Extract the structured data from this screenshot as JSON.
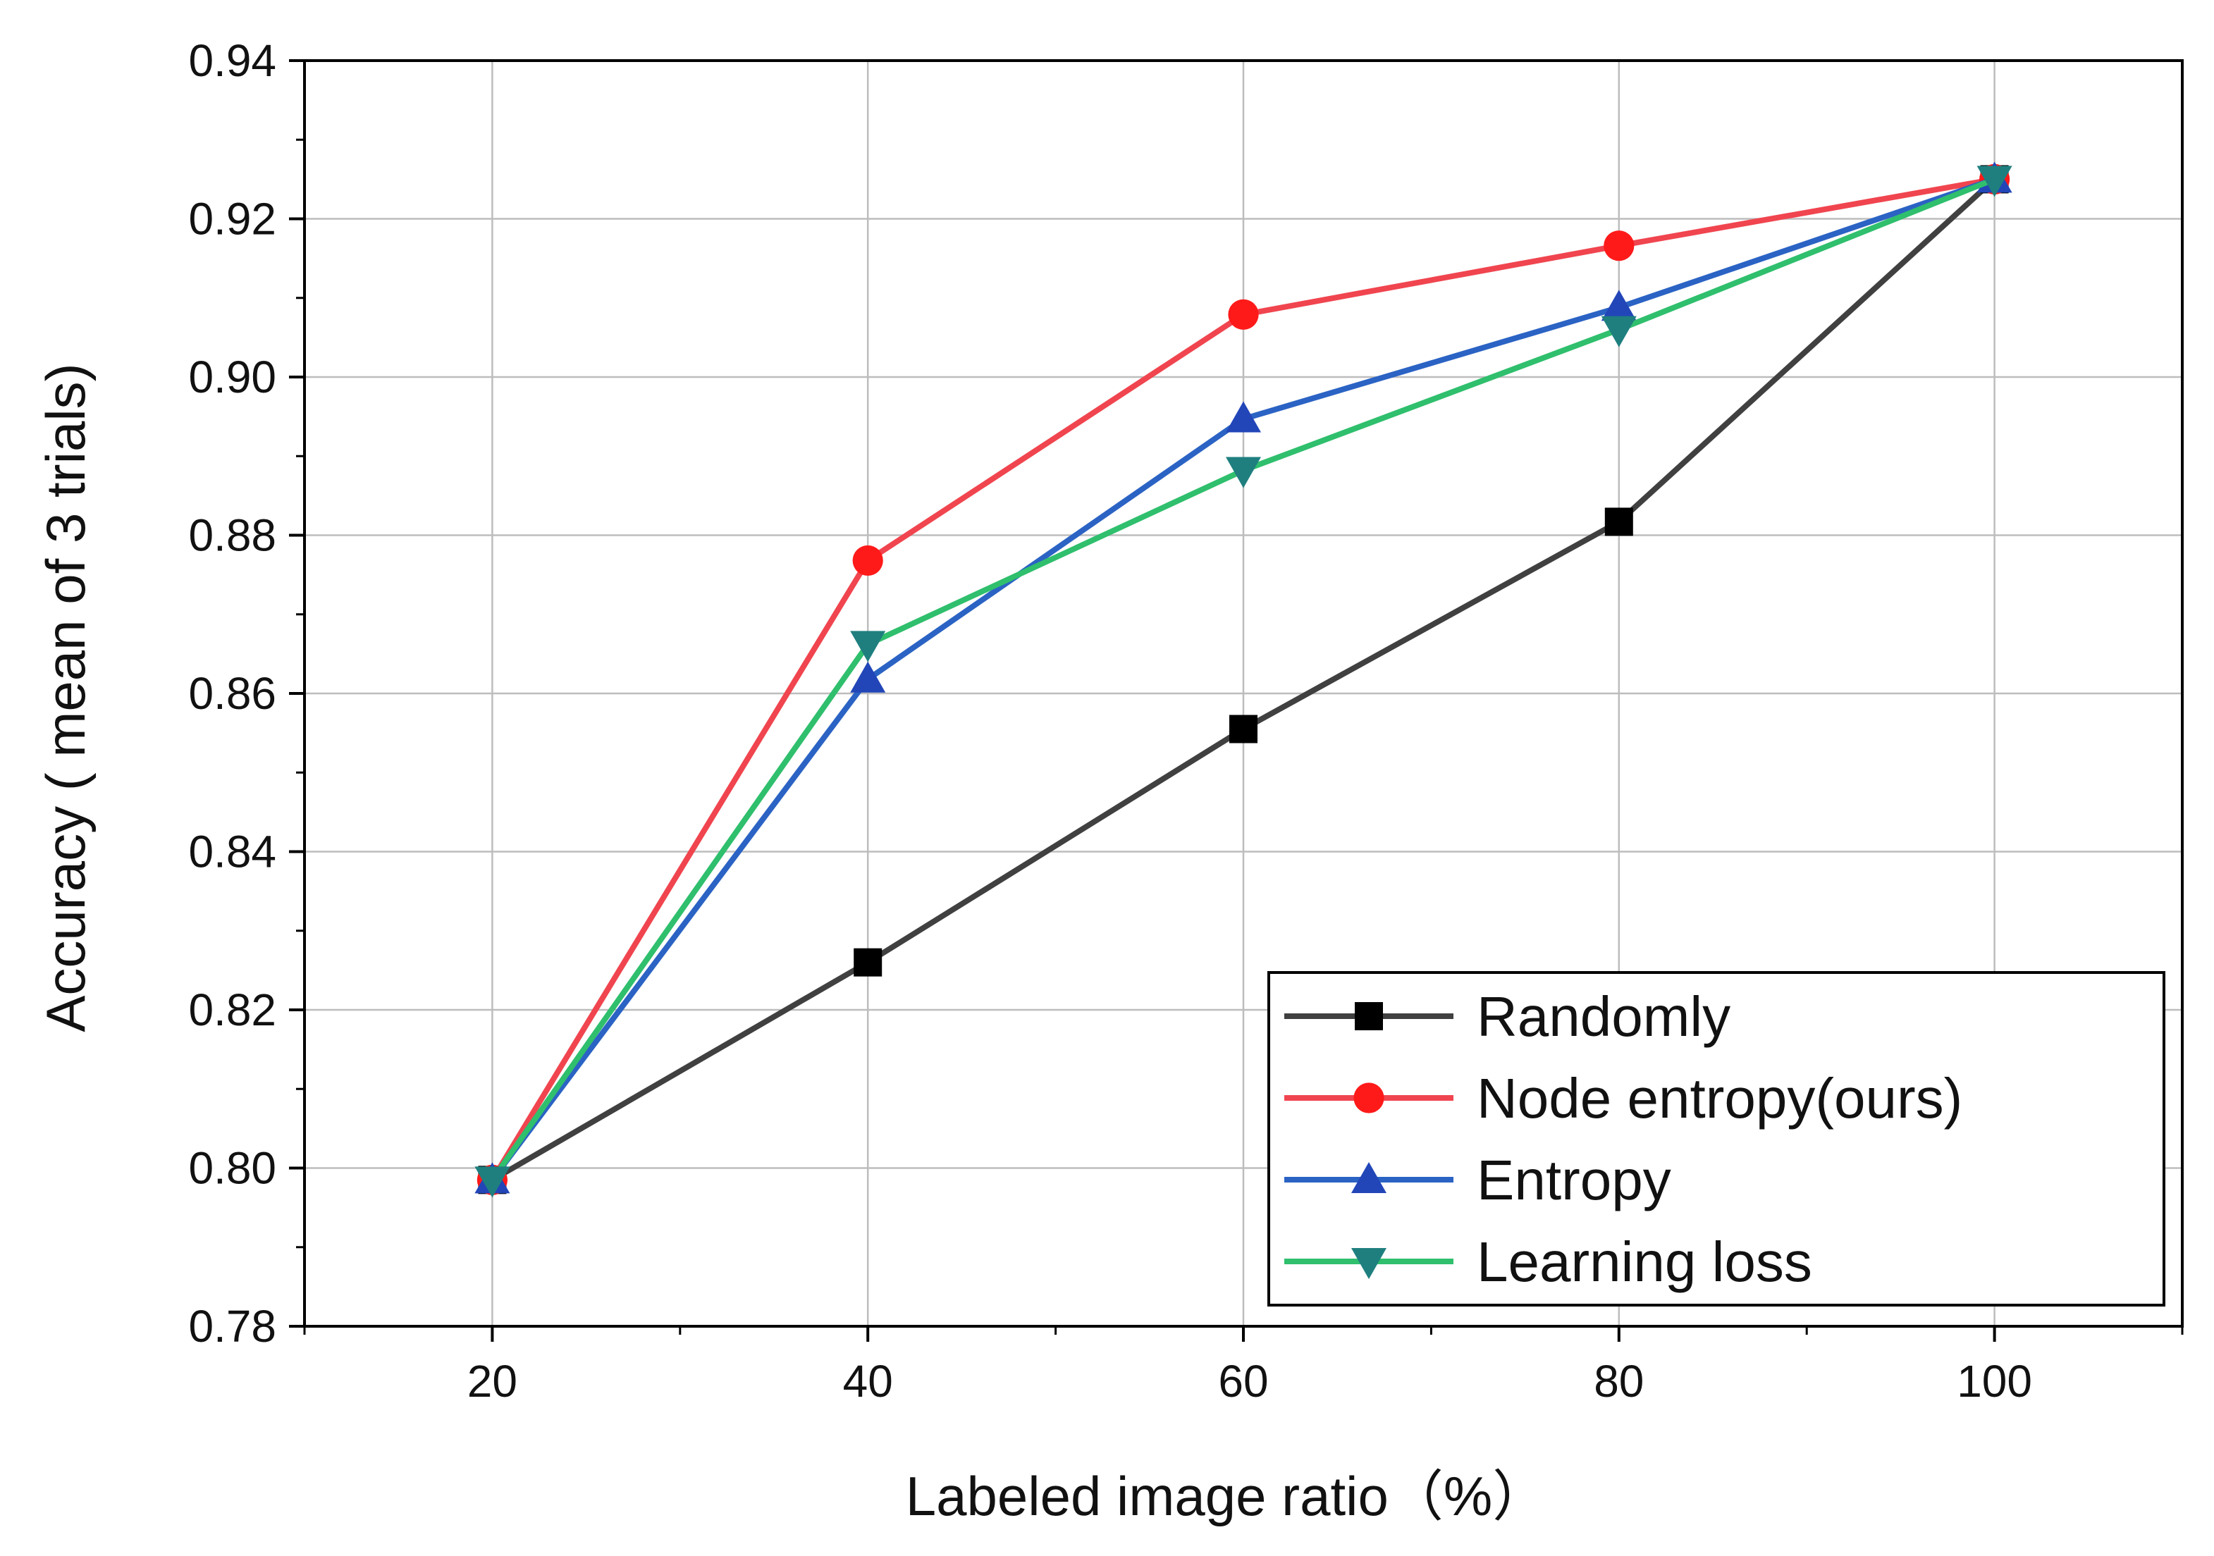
{
  "chart_data": {
    "type": "line",
    "xlabel": "Labeled image ratio（%）",
    "ylabel": "Accuracy ( mean of 3 trials)",
    "x": [
      20,
      40,
      60,
      80,
      100
    ],
    "x_ticks": [
      "20",
      "40",
      "60",
      "80",
      "100"
    ],
    "y_ticks": [
      "0.78",
      "0.80",
      "0.82",
      "0.84",
      "0.86",
      "0.88",
      "0.90",
      "0.92",
      "0.94"
    ],
    "xlim": [
      10,
      110
    ],
    "ylim": [
      0.78,
      0.94
    ],
    "grid": true,
    "legend_position": "bottom-right",
    "series": [
      {
        "name": "Randomly",
        "color": "#404040",
        "marker": "square",
        "marker_color": "#000000",
        "values": [
          0.7985,
          0.826,
          0.8555,
          0.8817,
          0.925
        ]
      },
      {
        "name": "Node entropy(ours)",
        "color": "#f0454f",
        "marker": "circle",
        "marker_color": "#ff1a1a",
        "values": [
          0.7985,
          0.8768,
          0.9079,
          0.9166,
          0.925
        ]
      },
      {
        "name": "Entropy",
        "color": "#2b63c4",
        "marker": "triangle-up",
        "marker_color": "#2246b8",
        "values": [
          0.7985,
          0.8618,
          0.8947,
          0.9088,
          0.925
        ]
      },
      {
        "name": "Learning loss",
        "color": "#2fbf6d",
        "marker": "triangle-down",
        "marker_color": "#1f7f7f",
        "values": [
          0.7985,
          0.8662,
          0.8882,
          0.906,
          0.925
        ]
      }
    ]
  }
}
